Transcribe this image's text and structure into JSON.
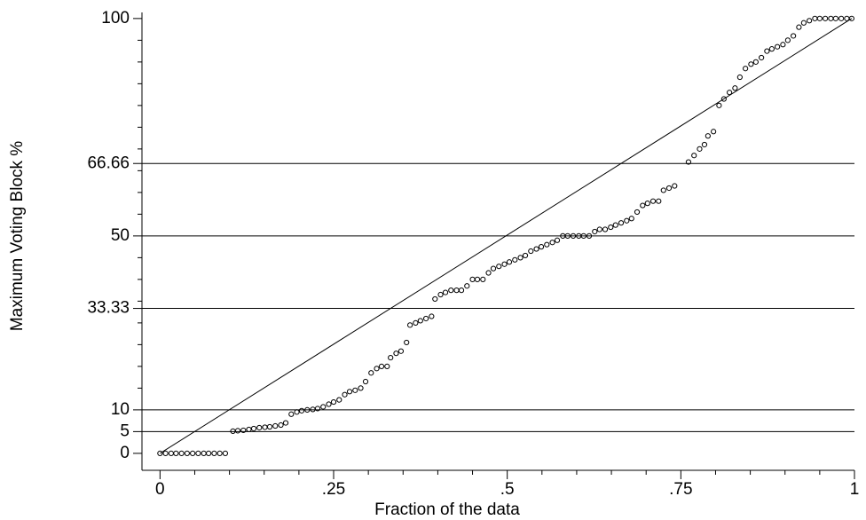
{
  "chart_data": {
    "type": "scatter",
    "x_label": "Fraction of the data",
    "y_label": "Maximum Voting Block %",
    "xlim": [
      -0.026,
      1.0
    ],
    "ylim": [
      -3.9,
      101.4
    ],
    "xticks": [
      0,
      {
        "value": 0.25,
        "label": ".25"
      },
      {
        "value": 0.5,
        "label": ".5"
      },
      {
        "value": 0.75,
        "label": ".75"
      },
      1
    ],
    "xminorticks": [
      0.05,
      0.1,
      0.15,
      0.2,
      0.3,
      0.35,
      0.4,
      0.45,
      0.55,
      0.6,
      0.65,
      0.7,
      0.8,
      0.85,
      0.9,
      0.95
    ],
    "yticks": [
      0,
      5,
      10,
      33.33,
      50,
      66.66,
      100
    ],
    "yminorticks": [
      15,
      20,
      25,
      30,
      35,
      40,
      45,
      55,
      60,
      65,
      70,
      75,
      80,
      85,
      90,
      95
    ],
    "ref_lines": [
      5,
      10,
      33.33,
      50,
      66.66
    ],
    "diagonal": true,
    "color": "#000000",
    "series": [
      {
        "x": [
          0,
          0.008,
          0.016,
          0.023,
          0.031,
          0.039,
          0.047,
          0.055,
          0.063,
          0.07,
          0.078,
          0.086,
          0.094,
          0.105,
          0.112,
          0.12,
          0.128,
          0.135,
          0.143,
          0.151,
          0.158,
          0.166,
          0.174,
          0.181,
          0.189,
          0.197,
          0.204,
          0.212,
          0.22,
          0.227,
          0.235,
          0.243,
          0.25,
          0.258,
          0.266,
          0.273,
          0.281,
          0.289,
          0.296,
          0.304,
          0.312,
          0.319,
          0.327,
          0.332,
          0.34,
          0.347,
          0.355,
          0.36,
          0.368,
          0.375,
          0.383,
          0.391,
          0.396,
          0.404,
          0.411,
          0.419,
          0.427,
          0.434,
          0.442,
          0.45,
          0.457,
          0.465,
          0.473,
          0.48,
          0.488,
          0.496,
          0.503,
          0.511,
          0.519,
          0.526,
          0.534,
          0.542,
          0.549,
          0.557,
          0.565,
          0.572,
          0.58,
          0.587,
          0.595,
          0.603,
          0.61,
          0.618,
          0.626,
          0.633,
          0.641,
          0.649,
          0.656,
          0.664,
          0.672,
          0.679,
          0.687,
          0.695,
          0.702,
          0.71,
          0.718,
          0.725,
          0.733,
          0.741,
          0.761,
          0.769,
          0.777,
          0.784,
          0.789,
          0.797,
          0.805,
          0.812,
          0.82,
          0.828,
          0.835,
          0.843,
          0.851,
          0.858,
          0.866,
          0.874,
          0.881,
          0.889,
          0.897,
          0.904,
          0.912,
          0.92,
          0.927,
          0.935,
          0.943,
          0.95,
          0.958,
          0.966,
          0.973,
          0.981,
          0.989,
          0.996
        ],
        "values": [
          0,
          0,
          0,
          0,
          0,
          0,
          0,
          0,
          0,
          0,
          0,
          0,
          0,
          5.1,
          5.2,
          5.3,
          5.5,
          5.7,
          5.9,
          6,
          6.1,
          6.3,
          6.5,
          7,
          9,
          9.5,
          9.8,
          10,
          10.1,
          10.3,
          10.7,
          11.3,
          11.8,
          12.3,
          13.5,
          14.2,
          14.5,
          15,
          16.5,
          18.5,
          19.5,
          20,
          20,
          22,
          23,
          23.5,
          25.5,
          29.5,
          30,
          30.5,
          31,
          31.5,
          35.5,
          36.5,
          37,
          37.5,
          37.5,
          37.5,
          38.5,
          40,
          40,
          40,
          41.5,
          42.5,
          43,
          43.5,
          44,
          44.5,
          45,
          45.5,
          46.5,
          47,
          47.5,
          48,
          48.5,
          49,
          50,
          50,
          50,
          50,
          50,
          50,
          51,
          51.5,
          51.5,
          52,
          52.5,
          53,
          53.5,
          54,
          55.5,
          57,
          57.5,
          58,
          58,
          60.5,
          61,
          61.5,
          67,
          68.5,
          70,
          71,
          73,
          74,
          80,
          81.5,
          83,
          84,
          86.5,
          88.5,
          89.5,
          90,
          91,
          92.5,
          93,
          93.5,
          94,
          95,
          96,
          98,
          99,
          99.5,
          100,
          100,
          100,
          100,
          100,
          100,
          100,
          100
        ]
      }
    ]
  }
}
